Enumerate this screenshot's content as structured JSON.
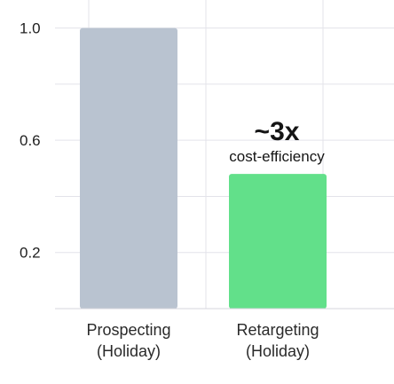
{
  "chart_data": {
    "type": "bar",
    "title": "",
    "xlabel": "",
    "ylabel": "",
    "categories": [
      "Prospecting\n(Holiday)",
      "Retargeting\n(Holiday)"
    ],
    "values": [
      1.0,
      0.48
    ],
    "yticks": [
      {
        "value": 1.0,
        "label": "1.0"
      },
      {
        "value": 0.6,
        "label": "0.6"
      },
      {
        "value": 0.2,
        "label": "0.2"
      }
    ],
    "ylim": [
      0.0,
      1.1
    ],
    "grid": true,
    "annotation": {
      "big": "~3x",
      "small": "cost-efficiency"
    },
    "colors": {
      "bars": [
        "#b9c3d0",
        "#62e08a"
      ],
      "grid": "#e3e3ea",
      "text": "#1f1f1f"
    }
  }
}
